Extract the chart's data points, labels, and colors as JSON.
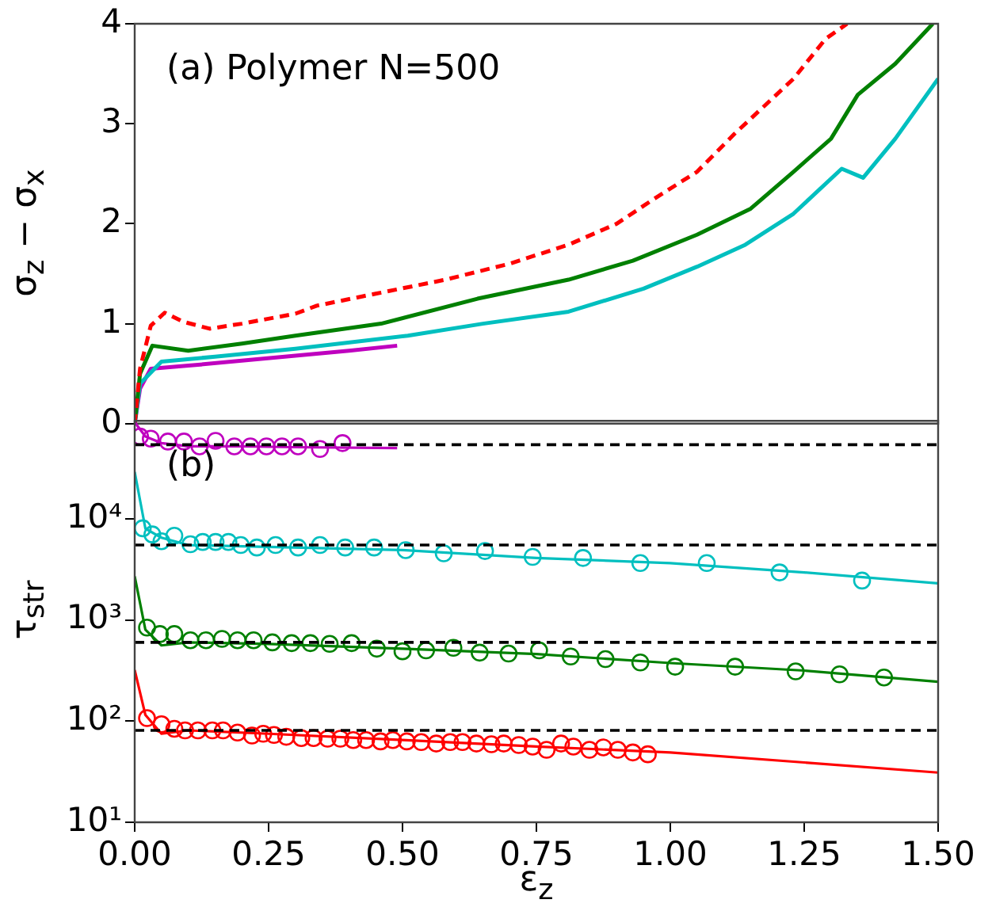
{
  "chart_data": [
    {
      "type": "line",
      "annotations": [
        "(a) Polymer N=500"
      ],
      "ylabel": "σ$_{z}$ − σ$_{x}$",
      "xlim": [
        0,
        1.5
      ],
      "ylim": [
        0,
        4
      ],
      "yticks": [
        0,
        1,
        2,
        3,
        4
      ],
      "tick_labels": "y",
      "series": [
        {
          "color": "#ff0000",
          "line_style": "dashed",
          "x": [
            0,
            0.01,
            0.03,
            0.056,
            0.09,
            0.14,
            0.2,
            0.3,
            0.34,
            0.45,
            0.58,
            0.7,
            0.81,
            0.9,
            0.97,
            1.05,
            1.12,
            1.18,
            1.23,
            1.29,
            1.33
          ],
          "values": [
            0,
            0.55,
            0.98,
            1.11,
            1.02,
            0.95,
            1.0,
            1.1,
            1.18,
            1.3,
            1.44,
            1.6,
            1.79,
            2.0,
            2.25,
            2.52,
            2.9,
            3.2,
            3.45,
            3.85,
            4.0
          ]
        },
        {
          "color": "#008000",
          "line_style": "solid",
          "x": [
            0,
            0.01,
            0.033,
            0.1,
            0.2,
            0.3,
            0.46,
            0.64,
            0.81,
            0.93,
            1.05,
            1.15,
            1.23,
            1.3,
            1.35,
            1.42,
            1.49
          ],
          "values": [
            0,
            0.5,
            0.78,
            0.73,
            0.8,
            0.88,
            1.0,
            1.25,
            1.44,
            1.63,
            1.89,
            2.15,
            2.52,
            2.85,
            3.29,
            3.6,
            4.0
          ]
        },
        {
          "color": "#00bfbf",
          "line_style": "solid",
          "x": [
            0,
            0.01,
            0.05,
            0.15,
            0.3,
            0.51,
            0.65,
            0.81,
            0.95,
            1.05,
            1.14,
            1.23,
            1.32,
            1.36,
            1.42,
            1.5
          ],
          "values": [
            0,
            0.4,
            0.62,
            0.67,
            0.75,
            0.88,
            1.0,
            1.12,
            1.35,
            1.57,
            1.79,
            2.1,
            2.55,
            2.46,
            2.85,
            3.45
          ]
        },
        {
          "color": "#bf00bf",
          "line_style": "solid",
          "x": [
            0,
            0.01,
            0.03,
            0.1,
            0.2,
            0.3,
            0.4,
            0.49
          ],
          "values": [
            0,
            0.35,
            0.55,
            0.58,
            0.63,
            0.68,
            0.73,
            0.78
          ]
        }
      ]
    },
    {
      "type": "line",
      "annotations": [
        "(b)"
      ],
      "xlabel": "ε$_{z}$",
      "ylabel": "τ$_{str}$",
      "log": "y",
      "xlim": [
        0,
        1.5
      ],
      "xticks": [
        {
          "value": 0,
          "label": "0.00"
        },
        {
          "value": 0.25,
          "label": "0.25"
        },
        {
          "value": 0.5,
          "label": "0.50"
        },
        {
          "value": 0.75,
          "label": "0.75"
        },
        {
          "value": 1,
          "label": "1.00"
        },
        {
          "value": 1.25,
          "label": "1.25"
        },
        {
          "value": 1.5,
          "label": "1.50"
        }
      ],
      "ylim": [
        10,
        93000
      ],
      "yticks": [
        {
          "value": 10,
          "label": "10¹"
        },
        {
          "value": 100,
          "label": "10²"
        },
        {
          "value": 1000,
          "label": "10³"
        },
        {
          "value": 10000,
          "label": "10⁴"
        }
      ],
      "ref_lines": [
        {
          "axis": "y",
          "value": 54000,
          "color": "#000000",
          "line_style": "dashed"
        },
        {
          "axis": "y",
          "value": 5500,
          "color": "#000000",
          "line_style": "dashed"
        },
        {
          "axis": "y",
          "value": 600,
          "color": "#000000",
          "line_style": "dashed"
        },
        {
          "axis": "y",
          "value": 81,
          "color": "#000000",
          "line_style": "dashed"
        }
      ],
      "series": [
        {
          "color": "#bf00bf",
          "x": [
            0,
            0.02,
            0.05,
            0.1,
            0.2,
            0.3,
            0.49
          ],
          "values": [
            90000,
            65000,
            56000,
            52000,
            52000,
            51000,
            50000
          ]
        },
        {
          "color": "#00bfbf",
          "x": [
            0,
            0.02,
            0.05,
            0.1,
            0.5,
            0.75,
            1.0,
            1.25,
            1.5
          ],
          "values": [
            29000,
            8000,
            6500,
            5500,
            4900,
            4100,
            3650,
            2950,
            2300
          ]
        },
        {
          "color": "#008000",
          "x": [
            0,
            0.02,
            0.05,
            0.1,
            0.25,
            0.5,
            0.75,
            1.0,
            1.25,
            1.5
          ],
          "values": [
            2700,
            800,
            560,
            600,
            580,
            520,
            460,
            375,
            316,
            245
          ]
        },
        {
          "color": "#ff0000",
          "x": [
            0,
            0.02,
            0.05,
            0.1,
            0.25,
            0.5,
            0.75,
            1.0,
            1.25,
            1.5
          ],
          "values": [
            320,
            115,
            75,
            81,
            75,
            65,
            56,
            49,
            39,
            31
          ]
        },
        {
          "type": "scatter",
          "marker": "circle",
          "color": "#bf00bf",
          "x": [
            0.01,
            0.03,
            0.062,
            0.092,
            0.121,
            0.151,
            0.186,
            0.216,
            0.246,
            0.275,
            0.305,
            0.346,
            0.388
          ],
          "values": [
            65000,
            62000,
            58000,
            58000,
            52000,
            59000,
            52000,
            52000,
            52000,
            52000,
            52000,
            49000,
            56000
          ]
        },
        {
          "type": "scatter",
          "marker": "circle",
          "color": "#00bfbf",
          "x": [
            0.015,
            0.033,
            0.05,
            0.074,
            0.104,
            0.127,
            0.151,
            0.175,
            0.198,
            0.228,
            0.263,
            0.305,
            0.346,
            0.393,
            0.447,
            0.506,
            0.577,
            0.654,
            0.743,
            0.837,
            0.944,
            1.068,
            1.204,
            1.358
          ],
          "values": [
            8050,
            7000,
            6000,
            6800,
            5600,
            5900,
            5900,
            5900,
            5500,
            5200,
            5500,
            5200,
            5500,
            5200,
            5200,
            4900,
            4550,
            4800,
            4200,
            4100,
            3650,
            3650,
            2950,
            2450
          ]
        },
        {
          "type": "scatter",
          "marker": "circle",
          "color": "#008000",
          "x": [
            0.023,
            0.047,
            0.074,
            0.104,
            0.133,
            0.163,
            0.192,
            0.222,
            0.257,
            0.293,
            0.328,
            0.364,
            0.405,
            0.452,
            0.5,
            0.544,
            0.595,
            0.644,
            0.698,
            0.755,
            0.814,
            0.879,
            0.944,
            1.009,
            1.121,
            1.234,
            1.316,
            1.399
          ],
          "values": [
            840,
            725,
            725,
            630,
            630,
            650,
            630,
            630,
            600,
            590,
            590,
            580,
            590,
            520,
            490,
            500,
            530,
            475,
            465,
            500,
            435,
            410,
            380,
            345,
            345,
            310,
            290,
            270
          ]
        },
        {
          "type": "scatter",
          "marker": "circle",
          "color": "#ff0000",
          "x": [
            0.023,
            0.05,
            0.074,
            0.094,
            0.118,
            0.145,
            0.165,
            0.192,
            0.219,
            0.24,
            0.26,
            0.283,
            0.311,
            0.334,
            0.36,
            0.384,
            0.408,
            0.432,
            0.459,
            0.482,
            0.508,
            0.535,
            0.563,
            0.589,
            0.612,
            0.638,
            0.666,
            0.689,
            0.717,
            0.743,
            0.769,
            0.796,
            0.819,
            0.849,
            0.875,
            0.902,
            0.93,
            0.958
          ],
          "values": [
            107,
            93,
            84,
            81,
            81,
            81,
            81,
            77,
            72,
            75,
            73,
            70,
            68,
            68,
            67,
            67,
            65,
            65,
            63,
            65,
            63,
            62,
            60,
            62,
            62,
            60,
            59,
            60,
            58,
            56,
            52,
            60,
            56,
            52,
            55,
            52,
            49,
            47
          ]
        }
      ]
    }
  ]
}
